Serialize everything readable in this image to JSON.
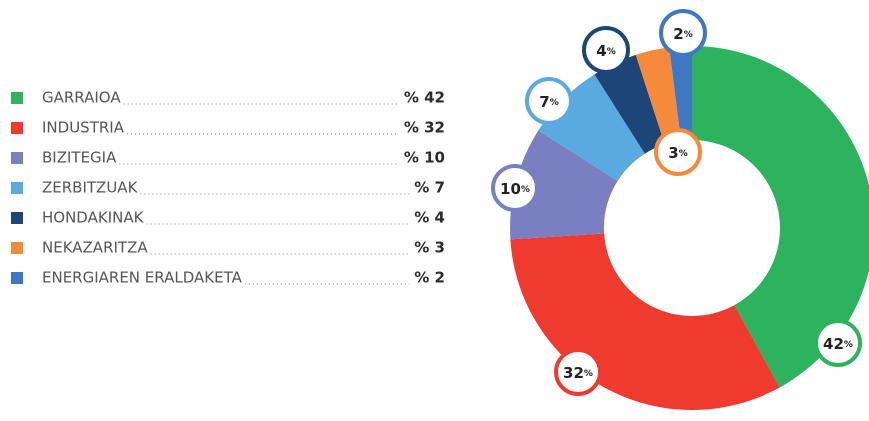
{
  "chart_data": {
    "type": "donut",
    "categories": [
      "GARRAIOA",
      "INDUSTRIA",
      "BIZITEGIA",
      "ZERBITZUAK",
      "HONDAKINAK",
      "NEKAZARITZA",
      "ENERGIAREN ERALDAKETA"
    ],
    "values": [
      42,
      32,
      10,
      7,
      4,
      3,
      2
    ],
    "value_labels": [
      "% 42",
      "% 32",
      "% 10",
      "% 7",
      "% 4",
      "% 3",
      "% 2"
    ],
    "slice_labels": [
      "42%",
      "32%",
      "10%",
      "7%",
      "4%",
      "3%",
      "2%"
    ],
    "colors": [
      "#2db35d",
      "#ee3a2f",
      "#7a7fc1",
      "#5aaadf",
      "#1d4577",
      "#f58a3c",
      "#3e78c4"
    ]
  }
}
